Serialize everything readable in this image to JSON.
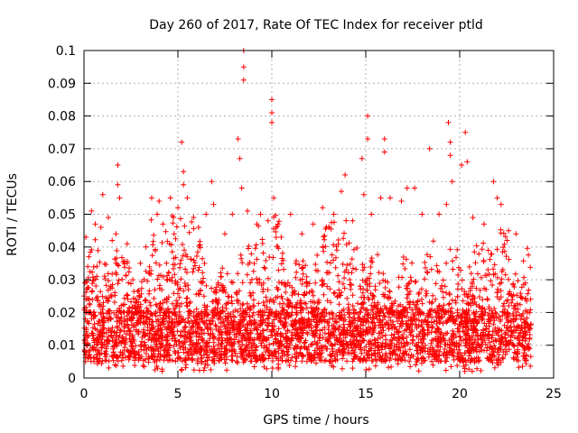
{
  "chart_data": {
    "type": "scatter",
    "title": "Day 260 of 2017, Rate Of TEC Index for receiver ptld",
    "xlabel": "GPS time / hours",
    "ylabel": "ROTI / TECUs",
    "xlim": [
      0,
      25
    ],
    "ylim": [
      0,
      0.1
    ],
    "xticks": [
      0,
      5,
      10,
      15,
      20,
      25
    ],
    "yticks": [
      0,
      0.01,
      0.02,
      0.03,
      0.04,
      0.05,
      0.06,
      0.07,
      0.08,
      0.09,
      0.1
    ],
    "grid": true,
    "marker": "+",
    "color": "#ff0000",
    "series": [
      {
        "name": "ROTI",
        "x_range": [
          0,
          23.8
        ],
        "dense_band": [
          0.005,
          0.02
        ],
        "points": [
          [
            0.1,
            0.043
          ],
          [
            0.2,
            0.034
          ],
          [
            0.4,
            0.051
          ],
          [
            0.6,
            0.047
          ],
          [
            0.9,
            0.046
          ],
          [
            1.0,
            0.056
          ],
          [
            1.3,
            0.049
          ],
          [
            1.5,
            0.042
          ],
          [
            1.7,
            0.044
          ],
          [
            1.8,
            0.065
          ],
          [
            1.8,
            0.059
          ],
          [
            1.9,
            0.055
          ],
          [
            2.3,
            0.041
          ],
          [
            2.6,
            0.03
          ],
          [
            3.0,
            0.035
          ],
          [
            3.3,
            0.04
          ],
          [
            3.6,
            0.055
          ],
          [
            3.9,
            0.05
          ],
          [
            4.0,
            0.054
          ],
          [
            4.2,
            0.047
          ],
          [
            4.6,
            0.055
          ],
          [
            4.8,
            0.044
          ],
          [
            5.0,
            0.052
          ],
          [
            5.2,
            0.072
          ],
          [
            5.3,
            0.063
          ],
          [
            5.3,
            0.059
          ],
          [
            5.5,
            0.055
          ],
          [
            6.1,
            0.046
          ],
          [
            6.5,
            0.05
          ],
          [
            6.8,
            0.06
          ],
          [
            6.9,
            0.053
          ],
          [
            7.5,
            0.044
          ],
          [
            7.9,
            0.05
          ],
          [
            8.2,
            0.073
          ],
          [
            8.3,
            0.067
          ],
          [
            8.4,
            0.058
          ],
          [
            8.5,
            0.1
          ],
          [
            8.5,
            0.095
          ],
          [
            8.5,
            0.091
          ],
          [
            8.7,
            0.051
          ],
          [
            9.2,
            0.047
          ],
          [
            9.4,
            0.05
          ],
          [
            9.8,
            0.048
          ],
          [
            10.0,
            0.085
          ],
          [
            10.0,
            0.081
          ],
          [
            10.0,
            0.078
          ],
          [
            10.1,
            0.055
          ],
          [
            10.5,
            0.043
          ],
          [
            11.0,
            0.05
          ],
          [
            11.6,
            0.044
          ],
          [
            12.2,
            0.047
          ],
          [
            12.7,
            0.052
          ],
          [
            13.3,
            0.05
          ],
          [
            13.7,
            0.057
          ],
          [
            13.9,
            0.062
          ],
          [
            14.3,
            0.048
          ],
          [
            14.8,
            0.067
          ],
          [
            14.9,
            0.056
          ],
          [
            15.1,
            0.08
          ],
          [
            15.1,
            0.073
          ],
          [
            15.3,
            0.05
          ],
          [
            15.8,
            0.055
          ],
          [
            16.0,
            0.073
          ],
          [
            16.0,
            0.069
          ],
          [
            16.3,
            0.055
          ],
          [
            16.9,
            0.054
          ],
          [
            17.2,
            0.058
          ],
          [
            17.6,
            0.058
          ],
          [
            18.0,
            0.05
          ],
          [
            18.4,
            0.07
          ],
          [
            18.9,
            0.05
          ],
          [
            19.3,
            0.053
          ],
          [
            19.4,
            0.078
          ],
          [
            19.5,
            0.072
          ],
          [
            19.5,
            0.068
          ],
          [
            19.6,
            0.06
          ],
          [
            20.1,
            0.065
          ],
          [
            20.3,
            0.075
          ],
          [
            20.4,
            0.066
          ],
          [
            20.7,
            0.049
          ],
          [
            21.3,
            0.047
          ],
          [
            21.8,
            0.06
          ],
          [
            22.0,
            0.055
          ],
          [
            22.2,
            0.053
          ],
          [
            22.6,
            0.045
          ],
          [
            23.0,
            0.044
          ],
          [
            23.5,
            0.029
          ]
        ]
      }
    ]
  }
}
